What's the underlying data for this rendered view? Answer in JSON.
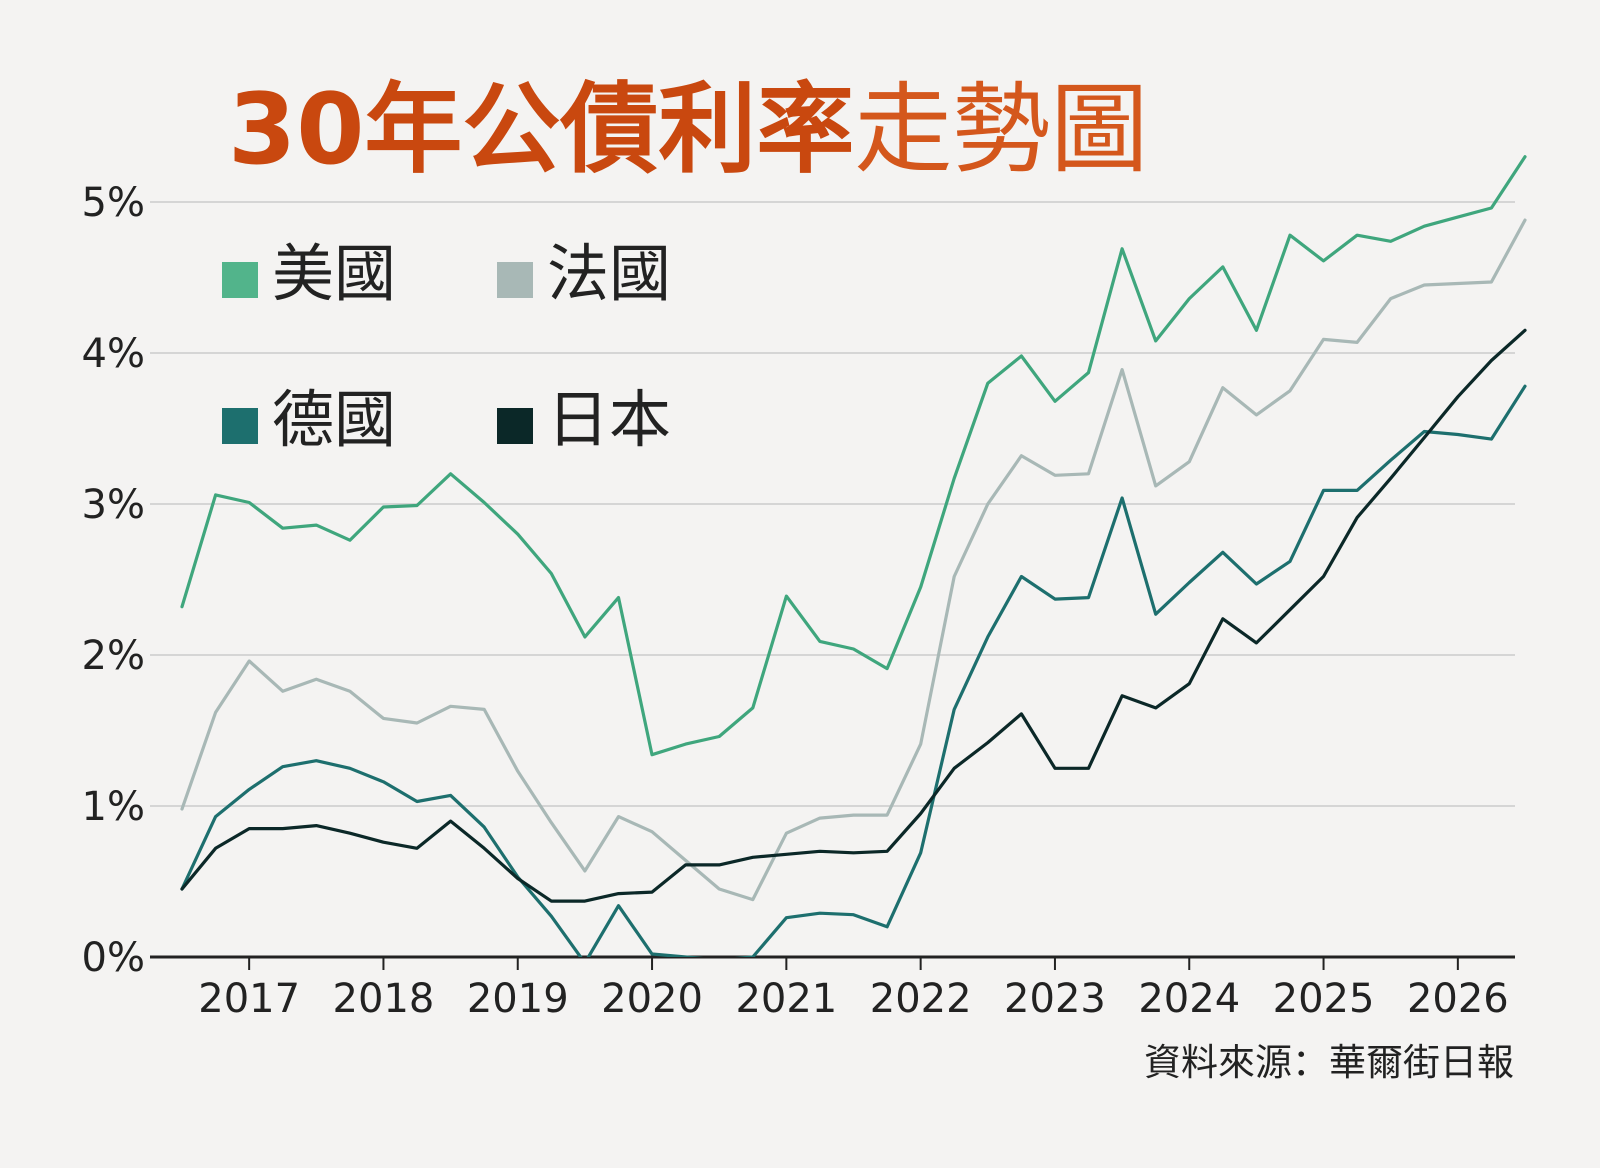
{
  "chart_data": {
    "type": "line",
    "title_bold": "30年公債利率",
    "title_light": "走勢圖",
    "source": "資料來源：華爾街日報",
    "ylim": [
      0,
      5
    ],
    "xlim": [
      2016.5,
      2026.5
    ],
    "y_ticks": [
      0,
      1,
      2,
      3,
      4,
      5
    ],
    "y_tick_labels": [
      "0%",
      "1%",
      "2%",
      "3%",
      "4%",
      "5%"
    ],
    "x_ticks": [
      2017,
      2018,
      2019,
      2020,
      2021,
      2022,
      2023,
      2024,
      2025,
      2026
    ],
    "x_tick_labels": [
      "2017",
      "2018",
      "2019",
      "2020",
      "2021",
      "2022",
      "2023",
      "2024",
      "2025",
      "2026"
    ],
    "grid": "horizontal",
    "legend_placement": "top-left",
    "colors": {
      "background": "#f4f3f2",
      "title_bold": "#c9480f",
      "title_light": "#d4571c",
      "grid": "#d5d5d5",
      "axis": "#222222",
      "text": "#222222"
    },
    "x": [
      2016.5,
      2016.75,
      2017.0,
      2017.25,
      2017.5,
      2017.75,
      2018.0,
      2018.25,
      2018.5,
      2018.75,
      2019.0,
      2019.25,
      2019.5,
      2019.75,
      2020.0,
      2020.25,
      2020.5,
      2020.75,
      2021.0,
      2021.25,
      2021.5,
      2021.75,
      2022.0,
      2022.25,
      2022.5,
      2022.75,
      2023.0,
      2023.25,
      2023.5,
      2023.75,
      2024.0,
      2024.25,
      2024.5,
      2024.75,
      2025.0,
      2025.25,
      2025.5,
      2025.75,
      2026.0,
      2026.25,
      2026.5
    ],
    "series": [
      {
        "name": "美國",
        "color": "#3fa67d",
        "legend_color": "#52b48b",
        "values": [
          2.32,
          3.06,
          3.01,
          2.84,
          2.86,
          2.76,
          2.98,
          2.99,
          3.2,
          3.01,
          2.8,
          2.54,
          2.12,
          2.38,
          1.34,
          1.41,
          1.46,
          1.65,
          2.39,
          2.09,
          2.04,
          1.91,
          2.45,
          3.17,
          3.8,
          3.98,
          3.68,
          3.87,
          4.69,
          4.08,
          4.36,
          4.57,
          4.15,
          4.78,
          4.61,
          4.78,
          4.74,
          4.84,
          4.9,
          4.96,
          5.3
        ]
      },
      {
        "name": "法國",
        "color": "#a8b8b6",
        "legend_color": "#a8b8b6",
        "values": [
          0.98,
          1.62,
          1.96,
          1.76,
          1.84,
          1.76,
          1.58,
          1.55,
          1.66,
          1.64,
          1.23,
          0.89,
          0.57,
          0.93,
          0.83,
          0.64,
          0.45,
          0.38,
          0.82,
          0.92,
          0.94,
          0.94,
          1.41,
          2.52,
          3.0,
          3.32,
          3.19,
          3.2,
          3.89,
          3.12,
          3.28,
          3.77,
          3.59,
          3.75,
          4.09,
          4.07,
          4.36,
          4.45,
          4.46,
          4.47,
          4.88
        ]
      },
      {
        "name": "德國",
        "color": "#1d6f6e",
        "legend_color": "#1d6f6e",
        "values": [
          0.45,
          0.93,
          1.11,
          1.26,
          1.3,
          1.25,
          1.16,
          1.03,
          1.07,
          0.86,
          0.53,
          0.27,
          -0.04,
          0.34,
          0.02,
          0.0,
          -0.02,
          0.0,
          0.26,
          0.29,
          0.28,
          0.2,
          0.69,
          1.64,
          2.12,
          2.52,
          2.37,
          2.38,
          3.04,
          2.27,
          2.48,
          2.68,
          2.47,
          2.62,
          3.09,
          3.09,
          3.29,
          3.48,
          3.46,
          3.43,
          3.78
        ]
      },
      {
        "name": "日本",
        "color": "#0b2828",
        "legend_color": "#0b2828",
        "values": [
          0.45,
          0.72,
          0.85,
          0.85,
          0.87,
          0.82,
          0.76,
          0.72,
          0.9,
          0.72,
          0.52,
          0.37,
          0.37,
          0.42,
          0.43,
          0.61,
          0.61,
          0.66,
          0.68,
          0.7,
          0.69,
          0.7,
          0.95,
          1.25,
          1.42,
          1.61,
          1.25,
          1.25,
          1.73,
          1.65,
          1.81,
          2.24,
          2.08,
          2.3,
          2.52,
          2.91,
          3.17,
          3.44,
          3.71,
          3.95,
          4.15
        ]
      }
    ]
  }
}
